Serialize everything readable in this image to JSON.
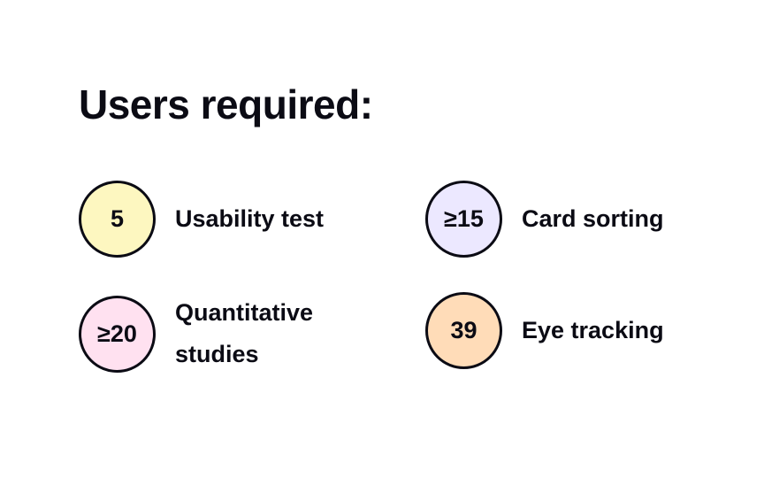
{
  "title": "Users required:",
  "items": [
    {
      "value": "5",
      "label": "Usability test",
      "color": "#fdf7c0"
    },
    {
      "value": "≥15",
      "label": "Card sorting",
      "color": "#ece8ff"
    },
    {
      "value": "≥20",
      "label": "Quantitative studies",
      "color": "#ffe1f0"
    },
    {
      "value": "39",
      "label": "Eye tracking",
      "color": "#ffdcb8"
    }
  ]
}
